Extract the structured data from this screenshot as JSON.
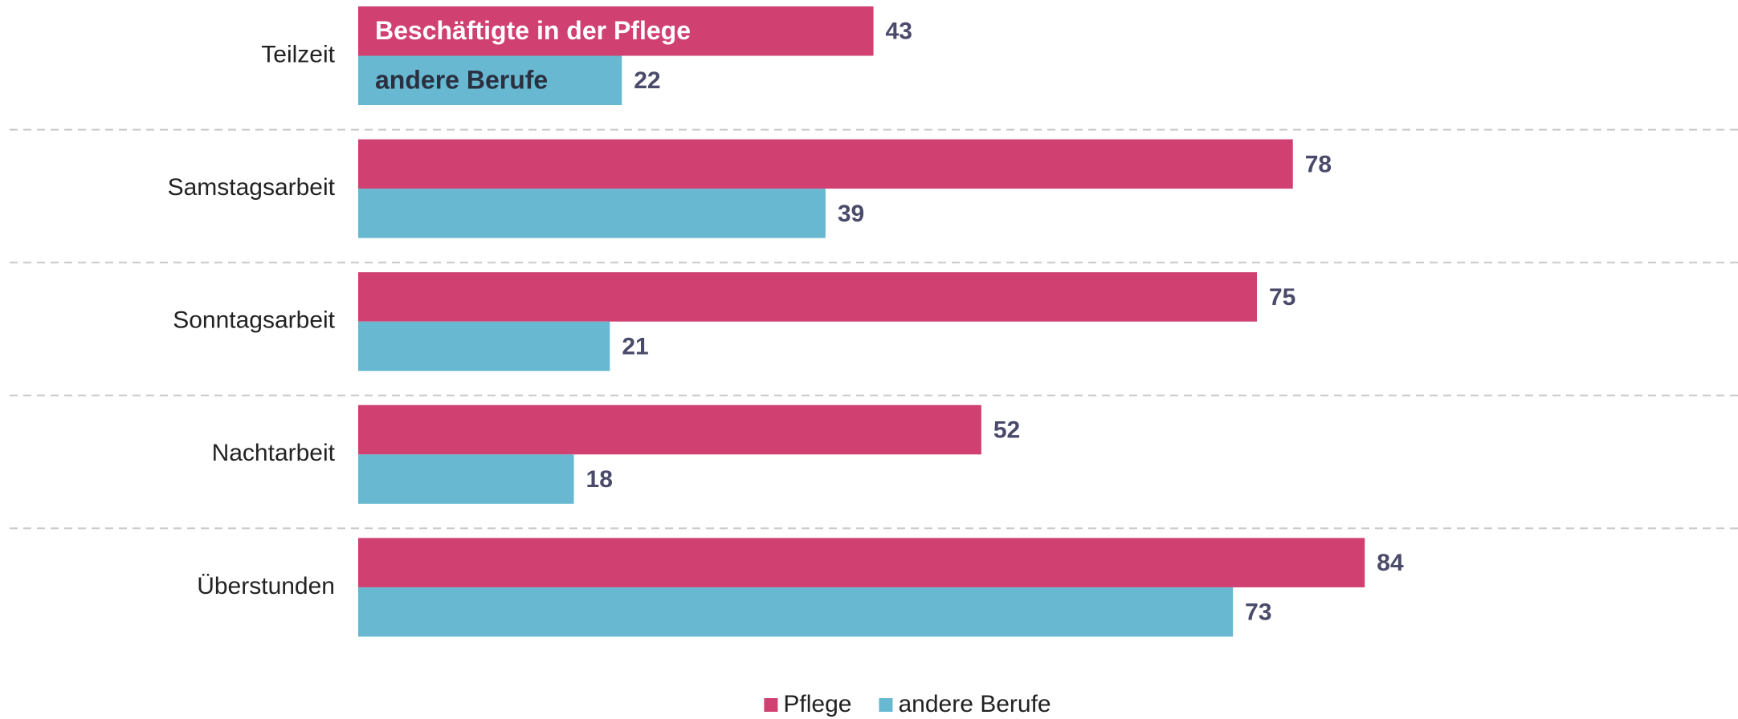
{
  "chart_data": {
    "type": "barh",
    "categories": [
      "Teilzeit",
      "Samstagsarbeit",
      "Sonntagsarbeit",
      "Nachtarbeit",
      "Überstunden"
    ],
    "series": [
      {
        "name": "Pflege",
        "color": "#d04070",
        "values": [
          43,
          78,
          75,
          52,
          84
        ]
      },
      {
        "name": "andere Berufe",
        "color": "#67b8d0",
        "values": [
          22,
          39,
          21,
          18,
          73
        ]
      }
    ],
    "annotations": [
      "Beschäftigte in der Pflege",
      "andere Berufe"
    ],
    "xlim": [
      0,
      100
    ],
    "legend": "bottom"
  }
}
